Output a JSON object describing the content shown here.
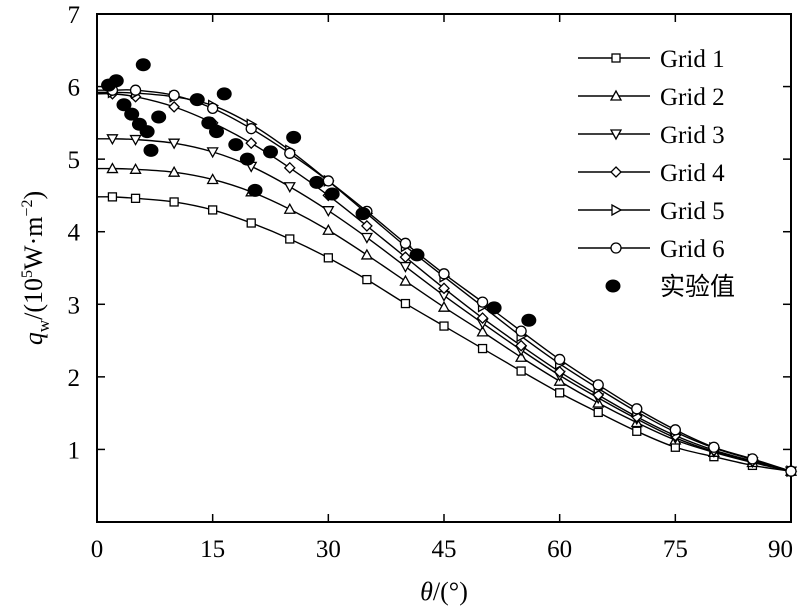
{
  "chart_data": {
    "type": "line",
    "title": "",
    "xlabel": {
      "var": "θ",
      "unit": "/(°)"
    },
    "ylabel": {
      "var": "q",
      "sub": "w",
      "unit_prefix": "/(10",
      "unit_exp1": "5",
      "unit_mid": "W·m",
      "unit_exp2": "−2",
      "unit_suffix": ")"
    },
    "xlim": [
      0,
      90
    ],
    "ylim": [
      0,
      7
    ],
    "xticks": [
      0,
      15,
      30,
      45,
      60,
      75,
      90
    ],
    "yticks": [
      1,
      2,
      3,
      4,
      5,
      6,
      7
    ],
    "y_zero_label": "0",
    "legend_position": "top-right",
    "series": [
      {
        "name": "Grid 1",
        "marker": "square",
        "x": [
          2,
          5,
          10,
          15,
          20,
          25,
          30,
          35,
          40,
          45,
          50,
          55,
          60,
          65,
          70,
          75,
          80,
          85,
          90
        ],
        "y": [
          4.48,
          4.46,
          4.41,
          4.3,
          4.12,
          3.9,
          3.64,
          3.34,
          3.01,
          2.7,
          2.39,
          2.08,
          1.78,
          1.51,
          1.25,
          1.03,
          0.9,
          0.78,
          0.7
        ]
      },
      {
        "name": "Grid 2",
        "marker": "triangle-up",
        "x": [
          2,
          5,
          10,
          15,
          20,
          25,
          30,
          35,
          40,
          45,
          50,
          55,
          60,
          65,
          70,
          75,
          80,
          85,
          90
        ],
        "y": [
          4.87,
          4.86,
          4.82,
          4.72,
          4.55,
          4.31,
          4.02,
          3.68,
          3.32,
          2.96,
          2.62,
          2.27,
          1.94,
          1.64,
          1.37,
          1.13,
          0.96,
          0.82,
          0.7
        ]
      },
      {
        "name": "Grid 3",
        "marker": "triangle-down",
        "x": [
          2,
          5,
          10,
          15,
          20,
          25,
          30,
          35,
          40,
          45,
          50,
          55,
          60,
          65,
          70,
          75,
          80,
          85,
          90
        ],
        "y": [
          5.28,
          5.27,
          5.22,
          5.1,
          4.9,
          4.62,
          4.29,
          3.92,
          3.52,
          3.12,
          2.74,
          2.37,
          2.02,
          1.71,
          1.42,
          1.16,
          0.97,
          0.83,
          0.7
        ]
      },
      {
        "name": "Grid 4",
        "marker": "diamond",
        "x": [
          2,
          5,
          10,
          15,
          20,
          25,
          30,
          35,
          40,
          45,
          50,
          55,
          60,
          65,
          70,
          75,
          80,
          85,
          90
        ],
        "y": [
          5.9,
          5.86,
          5.72,
          5.5,
          5.22,
          4.88,
          4.5,
          4.08,
          3.65,
          3.22,
          2.81,
          2.43,
          2.07,
          1.75,
          1.45,
          1.19,
          0.99,
          0.84,
          0.7
        ]
      },
      {
        "name": "Grid 5",
        "marker": "triangle-right",
        "x": [
          2,
          5,
          10,
          15,
          20,
          25,
          30,
          35,
          40,
          45,
          50,
          55,
          60,
          65,
          70,
          75,
          80,
          85,
          90
        ],
        "y": [
          5.92,
          5.91,
          5.86,
          5.74,
          5.48,
          5.12,
          4.7,
          4.25,
          3.8,
          3.38,
          2.97,
          2.56,
          2.18,
          1.84,
          1.52,
          1.24,
          1.02,
          0.86,
          0.7
        ]
      },
      {
        "name": "Grid 6",
        "marker": "circle",
        "x": [
          2,
          5,
          10,
          15,
          20,
          25,
          30,
          35,
          40,
          45,
          50,
          55,
          60,
          65,
          70,
          75,
          80,
          85,
          90
        ],
        "y": [
          5.95,
          5.95,
          5.88,
          5.7,
          5.42,
          5.08,
          4.7,
          4.28,
          3.84,
          3.42,
          3.03,
          2.63,
          2.24,
          1.89,
          1.56,
          1.27,
          1.03,
          0.87,
          0.7
        ]
      },
      {
        "name": "实验值",
        "marker": "filled-ellipse",
        "line": false,
        "x": [
          1.5,
          2.5,
          3.5,
          4.5,
          5.5,
          6.0,
          6.5,
          7.0,
          8.0,
          13.0,
          14.5,
          15.5,
          16.5,
          18.0,
          19.5,
          20.5,
          22.5,
          25.5,
          28.5,
          30.5,
          34.5,
          41.5,
          51.5,
          56.0
        ],
        "y": [
          6.02,
          6.08,
          5.75,
          5.62,
          5.48,
          6.3,
          5.38,
          5.12,
          5.58,
          5.82,
          5.5,
          5.38,
          5.9,
          5.2,
          5.0,
          4.57,
          5.1,
          5.3,
          4.68,
          4.52,
          4.25,
          3.68,
          2.95,
          2.78
        ]
      }
    ]
  }
}
